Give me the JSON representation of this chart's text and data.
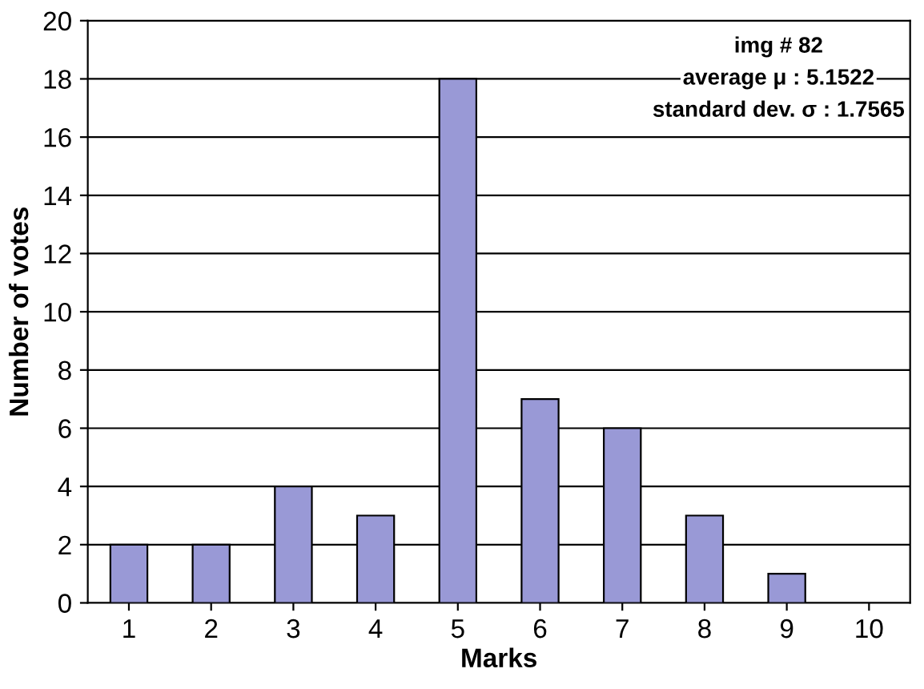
{
  "chart_data": {
    "type": "bar",
    "xlabel": "Marks",
    "ylabel": "Number of votes",
    "categories": [
      "1",
      "2",
      "3",
      "4",
      "5",
      "6",
      "7",
      "8",
      "9",
      "10"
    ],
    "values": [
      2,
      2,
      4,
      3,
      18,
      7,
      6,
      3,
      1,
      0
    ],
    "color": "#9999d6",
    "ylim": [
      0,
      20
    ],
    "yticks": [
      0,
      2,
      4,
      6,
      8,
      10,
      12,
      14,
      16,
      18,
      20
    ],
    "grid": "y",
    "annotations": [
      "img # 82",
      "average μ : 5.1522",
      "standard dev. σ : 1.7565"
    ]
  }
}
